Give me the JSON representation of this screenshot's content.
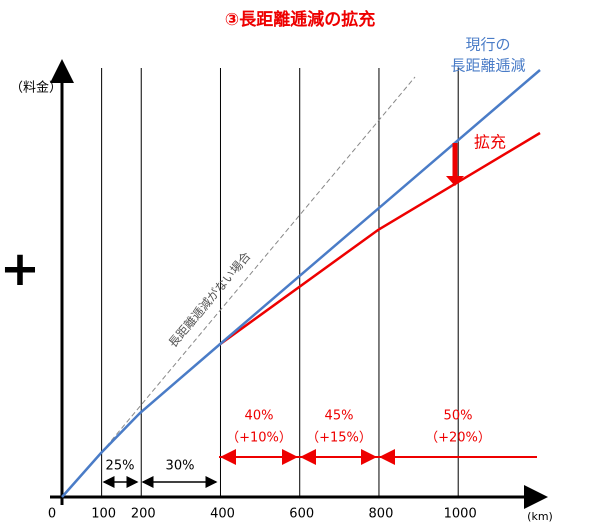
{
  "title": "③長距離逓減の拡充",
  "y_axis_label": "（料金）",
  "plus_sign": "+",
  "x_axis": {
    "unit": "(km)",
    "ticks": [
      0,
      100,
      200,
      400,
      600,
      800,
      1000
    ]
  },
  "lines": {
    "current": [
      "現行の",
      "長距離逓減"
    ],
    "no_taper": "長距離逓減がない場合",
    "expansion": "拡充"
  },
  "bands_current": [
    "25%",
    "30%"
  ],
  "bands_new": [
    {
      "rate": "40%",
      "increase": "（+10%）"
    },
    {
      "rate": "45%",
      "increase": "（+15%）"
    },
    {
      "rate": "50%",
      "increase": "（+20%）"
    }
  ]
}
